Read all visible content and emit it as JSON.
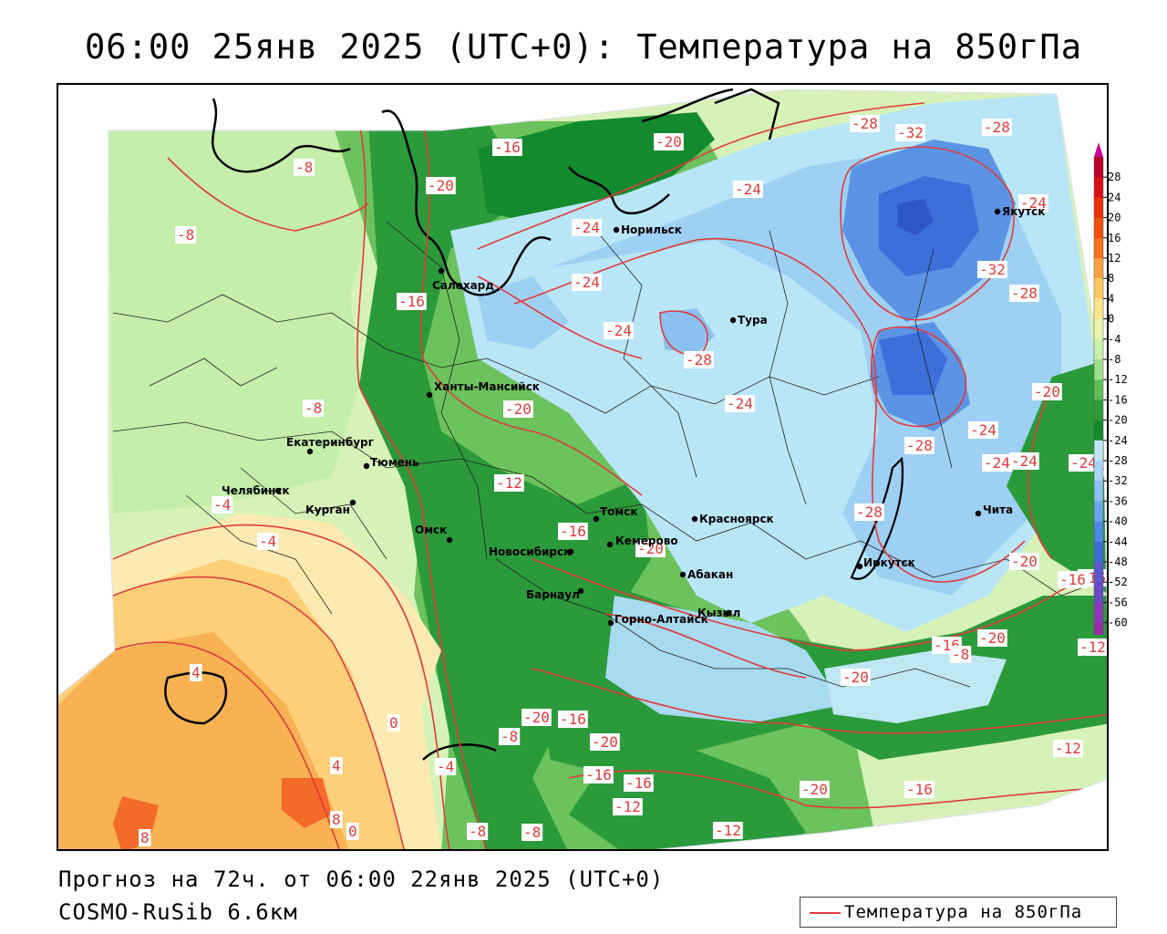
{
  "title": "06:00 25янв 2025 (UTC+0): Температура на 850гПа",
  "forecast_text": "Прогноз на 72ч. от 06:00 22янв 2025 (UTC+0)",
  "model_text": "COSMO-RuSib 6.6км",
  "legend": {
    "label": "Температура на 850гПа",
    "line_color": "#e03b3b"
  },
  "colorbar": {
    "ticks": [
      "28",
      "24",
      "20",
      "16",
      "12",
      "8",
      "4",
      "0",
      "-4",
      "-8",
      "-12",
      "-16",
      "-20",
      "-24",
      "-28",
      "-32",
      "-36",
      "-40",
      "-44",
      "-48",
      "-52",
      "-56",
      "-60"
    ],
    "colors": [
      "#b8002a",
      "#d8101a",
      "#e8300a",
      "#f05010",
      "#f87020",
      "#fca040",
      "#fdc860",
      "#fde68a",
      "#e8f5b0",
      "#c9f0a8",
      "#9ee08a",
      "#5fc05a",
      "#2e9b3a",
      "#118a2c",
      "#bfe7f2",
      "#a8d5f5",
      "#8cc0f0",
      "#6aa6ea",
      "#4a88e4",
      "#3a6cd8",
      "#5a5ad0",
      "#6a4ac4",
      "#8a3ab8",
      "#9a2aa8"
    ],
    "top_arrow_color": "#cc0099",
    "bottom_arrow_color": "#8a2ab0"
  },
  "contour_labels": [
    "-16",
    "-20",
    "-8",
    "-20",
    "-24",
    "-24",
    "-28",
    "-32",
    "-28",
    "-8",
    "-24",
    "-16",
    "-24",
    "-32",
    "-28",
    "-24",
    "-28",
    "-24",
    "-8",
    "-20",
    "-20",
    "-24",
    "-28",
    "-24",
    "-24",
    "-12",
    "-16",
    "-20",
    "-28",
    "-24",
    "-4",
    "-4",
    "-16",
    "-16",
    "-20",
    "-20",
    "-20",
    "-16",
    "-12",
    "-16",
    "-20",
    "-20",
    "-12",
    "-8",
    "-16",
    "-20",
    "-4",
    "-16",
    "-12",
    "-8",
    "-8",
    "-12",
    "-20",
    "-16",
    "-8",
    "4",
    "4",
    "0",
    "8",
    "0",
    "8"
  ],
  "cities": [
    "Норильск",
    "Якутск",
    "Салехард",
    "Тура",
    "Ханты-Мансийск",
    "Екатеринбург",
    "Тюмень",
    "Челябинск",
    "Курган",
    "Омск",
    "Томск",
    "Красноярск",
    "Новосибирск",
    "Кемерово",
    "Абакан",
    "Барнаул",
    "Иркутск",
    "Чита",
    "Кызыл",
    "Горно-Алтайск"
  ]
}
